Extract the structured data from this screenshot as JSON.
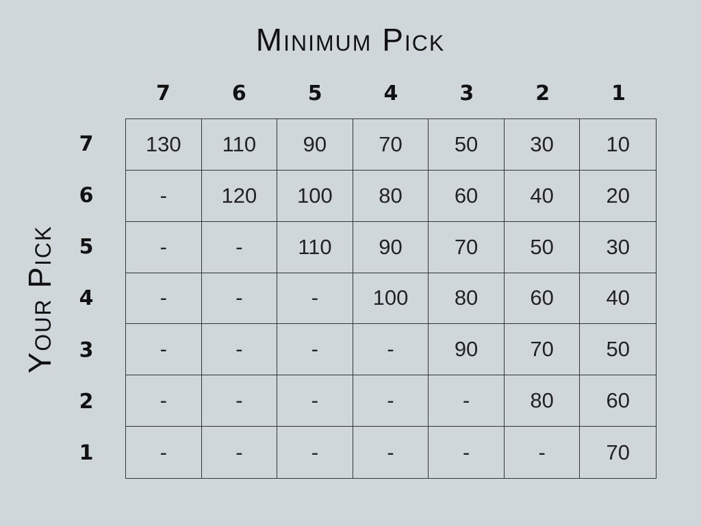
{
  "title_top": "Minimum Pick",
  "title_side": "Your Pick",
  "col_headers": [
    "7",
    "6",
    "5",
    "4",
    "3",
    "2",
    "1"
  ],
  "row_headers": [
    "7",
    "6",
    "5",
    "4",
    "3",
    "2",
    "1"
  ],
  "rows": [
    [
      "130",
      "110",
      "90",
      "70",
      "50",
      "30",
      "10"
    ],
    [
      "-",
      "120",
      "100",
      "80",
      "60",
      "40",
      "20"
    ],
    [
      "-",
      "-",
      "110",
      "90",
      "70",
      "50",
      "30"
    ],
    [
      "-",
      "-",
      "-",
      "100",
      "80",
      "60",
      "40"
    ],
    [
      "-",
      "-",
      "-",
      "-",
      "90",
      "70",
      "50"
    ],
    [
      "-",
      "-",
      "-",
      "-",
      "-",
      "80",
      "60"
    ],
    [
      "-",
      "-",
      "-",
      "-",
      "-",
      "-",
      "70"
    ]
  ],
  "colors": {
    "background": "#d0d7da",
    "text": "#111111",
    "grid_line": "#333333"
  }
}
